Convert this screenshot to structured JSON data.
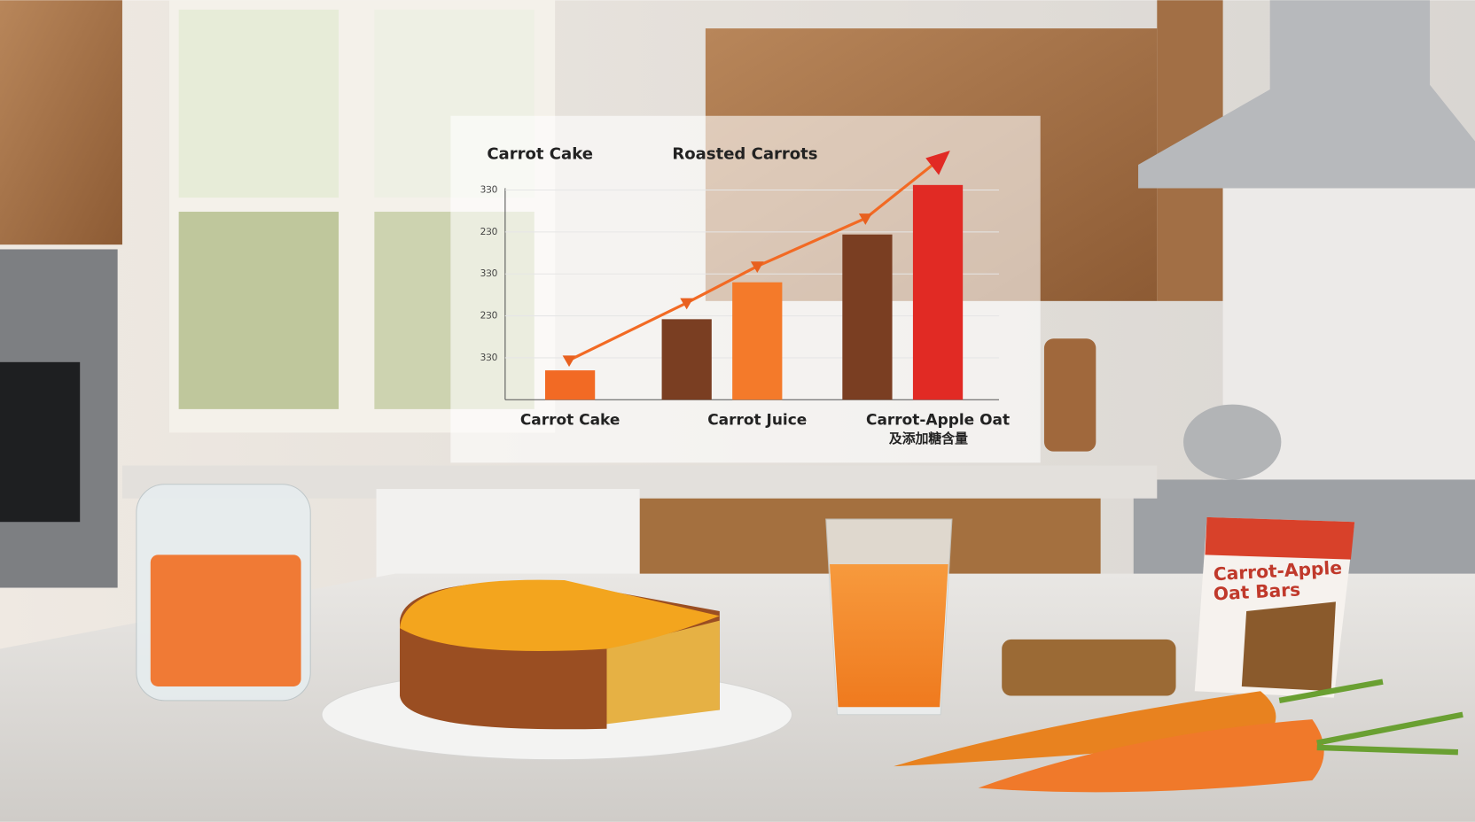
{
  "chart_data": {
    "type": "bar",
    "annotations": [
      "Carrot Cake",
      "Roasted Carrots"
    ],
    "categories": [
      "Carrot Cake",
      null,
      "Carrot Juice",
      null,
      "Carrot-Apple Oat"
    ],
    "category_note": "及添加糖含量",
    "values": [
      35,
      96,
      140,
      197,
      256
    ],
    "colors": [
      "#f26a24",
      "#7a3e22",
      "#f47a2a",
      "#7a3e22",
      "#e12a24"
    ],
    "ylim": [
      0,
      260
    ],
    "yticks": [
      {
        "value": 50,
        "label": "3Ɜ0"
      },
      {
        "value": 100,
        "label": "2Ɜ0"
      },
      {
        "value": 150,
        "label": "3Ɜ0"
      },
      {
        "value": 200,
        "label": "2Ɜ0"
      },
      {
        "value": 250,
        "label": "3Ɜ0"
      }
    ],
    "trend_arrow": true
  },
  "scene": {
    "package_lines": [
      "Carrot-Apple",
      "Oat Bars"
    ]
  }
}
